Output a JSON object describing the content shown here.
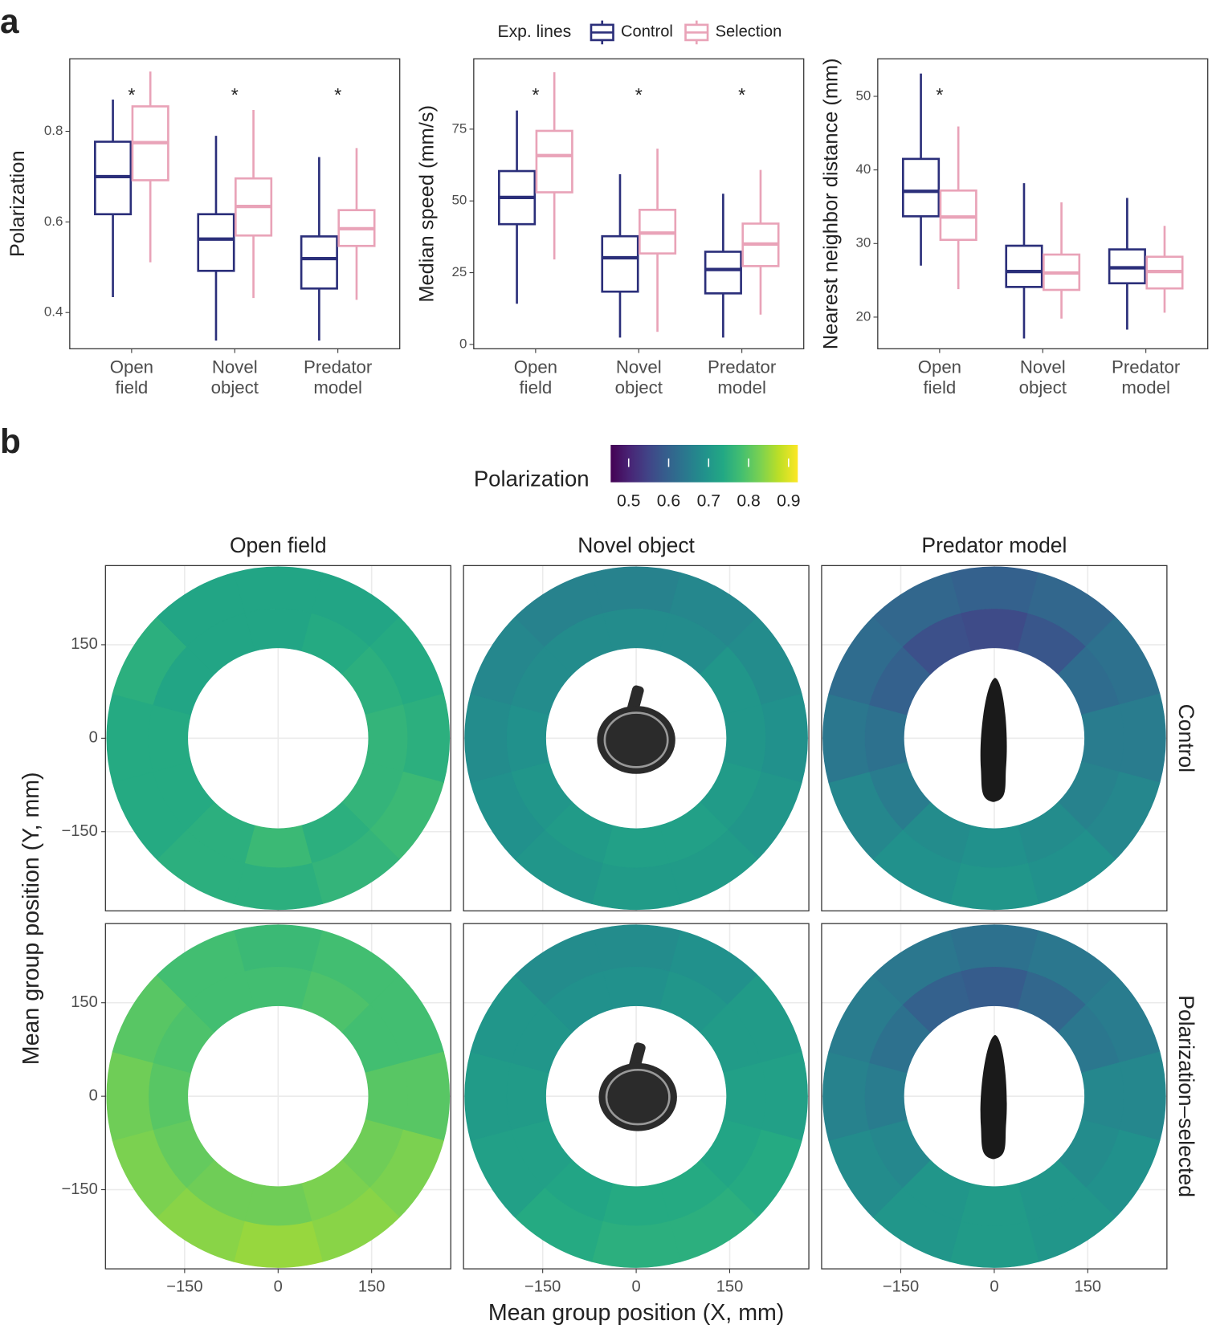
{
  "panel_labels": [
    "a",
    "b"
  ],
  "chart_data": [
    {
      "type": "box",
      "ylabel": "Polarization",
      "categories": [
        "Open field",
        "Novel object",
        "Predator model"
      ],
      "legend_title": "Exp. lines",
      "significant": [
        "*",
        "*",
        "*"
      ],
      "ylim": [
        0.32,
        0.96
      ],
      "yticks": [
        0.4,
        0.6,
        0.8
      ],
      "series": [
        {
          "name": "Control",
          "color": "#2b2f7a",
          "stats": [
            {
              "low": 0.434,
              "q1": 0.617,
              "median": 0.7,
              "q3": 0.777,
              "high": 0.87
            },
            {
              "low": 0.338,
              "q1": 0.492,
              "median": 0.562,
              "q3": 0.617,
              "high": 0.79
            },
            {
              "low": 0.338,
              "q1": 0.453,
              "median": 0.519,
              "q3": 0.568,
              "high": 0.743
            }
          ]
        },
        {
          "name": "Selection",
          "color": "#e9a3b8",
          "stats": [
            {
              "low": 0.511,
              "q1": 0.692,
              "median": 0.775,
              "q3": 0.855,
              "high": 0.932
            },
            {
              "low": 0.432,
              "q1": 0.57,
              "median": 0.634,
              "q3": 0.696,
              "high": 0.847
            },
            {
              "low": 0.428,
              "q1": 0.547,
              "median": 0.585,
              "q3": 0.626,
              "high": 0.763
            }
          ]
        }
      ]
    },
    {
      "type": "box",
      "ylabel": "Median speed (mm/s)",
      "categories": [
        "Open field",
        "Novel object",
        "Predator model"
      ],
      "significant": [
        "*",
        "*",
        "*"
      ],
      "ylim": [
        -1.5,
        99.5
      ],
      "yticks": [
        0,
        25,
        50,
        75
      ],
      "series": [
        {
          "color": "#2b2f7a",
          "stats": [
            {
              "low": 14.2,
              "q1": 41.9,
              "median": 51.2,
              "q3": 60.4,
              "high": 81.5
            },
            {
              "low": 2.4,
              "q1": 18.4,
              "median": 30.2,
              "q3": 37.7,
              "high": 59.3
            },
            {
              "low": 2.4,
              "q1": 17.8,
              "median": 26.1,
              "q3": 32.3,
              "high": 52.5
            }
          ]
        },
        {
          "color": "#e9a3b8",
          "stats": [
            {
              "low": 29.6,
              "q1": 53,
              "median": 65.8,
              "q3": 74.4,
              "high": 94.8
            },
            {
              "low": 4.4,
              "q1": 31.7,
              "median": 38.8,
              "q3": 46.9,
              "high": 68.2
            },
            {
              "low": 10.4,
              "q1": 27.3,
              "median": 35,
              "q3": 42.1,
              "high": 60.8
            }
          ]
        }
      ]
    },
    {
      "type": "box",
      "ylabel": "Nearest neighbor distance (mm)",
      "categories": [
        "Open field",
        "Novel object",
        "Predator model"
      ],
      "significant": [
        "*",
        null,
        null
      ],
      "ylim": [
        15.7,
        55.1
      ],
      "yticks": [
        20,
        30,
        40,
        50
      ],
      "series": [
        {
          "color": "#2b2f7a",
          "stats": [
            {
              "low": 27,
              "q1": 33.7,
              "median": 37.1,
              "q3": 41.5,
              "high": 53.1
            },
            {
              "low": 17.1,
              "q1": 24.1,
              "median": 26.2,
              "q3": 29.7,
              "high": 38.2
            },
            {
              "low": 18.3,
              "q1": 24.6,
              "median": 26.7,
              "q3": 29.2,
              "high": 36.2
            }
          ]
        },
        {
          "color": "#e9a3b8",
          "stats": [
            {
              "low": 23.8,
              "q1": 30.5,
              "median": 33.6,
              "q3": 37.2,
              "high": 45.9
            },
            {
              "low": 19.8,
              "q1": 23.7,
              "median": 26,
              "q3": 28.5,
              "high": 35.6
            },
            {
              "low": 20.6,
              "q1": 23.9,
              "median": 26.2,
              "q3": 28.2,
              "high": 32.4
            }
          ]
        }
      ]
    },
    {
      "type": "heatmap",
      "columns": [
        "Open field",
        "Novel object",
        "Predator model"
      ],
      "rows": [
        "Control",
        "Polarization–selected"
      ],
      "xlabel": "Mean group position (X, mm)",
      "ylabel": "Mean group position (Y, mm)",
      "xlim": [
        -277,
        277
      ],
      "ylim": [
        -277,
        277
      ],
      "xticks": [
        {
          "value": -150,
          "label": "−150"
        },
        0,
        150
      ],
      "yticks": [
        {
          "value": -150,
          "label": "−150"
        },
        0,
        150
      ],
      "grid": true,
      "ring_edges": [
        145,
        208,
        275
      ],
      "colorbar": {
        "title": "Polarization",
        "clim": [
          0.455,
          0.923
        ],
        "ticks": [
          0.5,
          0.6,
          0.7,
          0.8,
          0.9
        ]
      },
      "panels": [
        [
          [
            [
              0.73,
              0.74,
              0.75,
              0.76,
              0.76,
              0.75,
              0.77,
              0.75,
              0.74,
              0.74,
              0.73,
              0.73
            ],
            [
              0.73,
              0.73,
              0.74,
              0.75,
              0.77,
              0.76,
              0.75,
              0.75,
              0.74,
              0.74,
              0.75,
              0.73
            ]
          ],
          [
            [
              0.68,
              0.68,
              0.7,
              0.7,
              0.71,
              0.72,
              0.72,
              0.71,
              0.7,
              0.69,
              0.68,
              0.68
            ],
            [
              0.66,
              0.67,
              0.68,
              0.69,
              0.7,
              0.71,
              0.71,
              0.7,
              0.69,
              0.68,
              0.67,
              0.66
            ]
          ],
          [
            [
              0.56,
              0.58,
              0.62,
              0.65,
              0.66,
              0.68,
              0.69,
              0.68,
              0.65,
              0.63,
              0.6,
              0.57
            ],
            [
              0.6,
              0.61,
              0.63,
              0.65,
              0.67,
              0.69,
              0.7,
              0.69,
              0.67,
              0.64,
              0.62,
              0.61
            ]
          ]
        ],
        [
          [
            [
              0.78,
              0.79,
              0.78,
              0.8,
              0.82,
              0.83,
              0.82,
              0.82,
              0.81,
              0.8,
              0.79,
              0.78
            ],
            [
              0.77,
              0.78,
              0.78,
              0.8,
              0.83,
              0.84,
              0.85,
              0.84,
              0.83,
              0.82,
              0.8,
              0.78
            ]
          ],
          [
            [
              0.69,
              0.7,
              0.71,
              0.72,
              0.73,
              0.74,
              0.74,
              0.73,
              0.72,
              0.71,
              0.7,
              0.69
            ],
            [
              0.68,
              0.69,
              0.71,
              0.72,
              0.74,
              0.75,
              0.75,
              0.74,
              0.72,
              0.71,
              0.7,
              0.68
            ]
          ],
          [
            [
              0.59,
              0.61,
              0.64,
              0.67,
              0.68,
              0.7,
              0.71,
              0.7,
              0.67,
              0.65,
              0.63,
              0.6
            ],
            [
              0.63,
              0.64,
              0.65,
              0.67,
              0.69,
              0.7,
              0.71,
              0.7,
              0.68,
              0.66,
              0.65,
              0.64
            ]
          ]
        ]
      ]
    }
  ]
}
